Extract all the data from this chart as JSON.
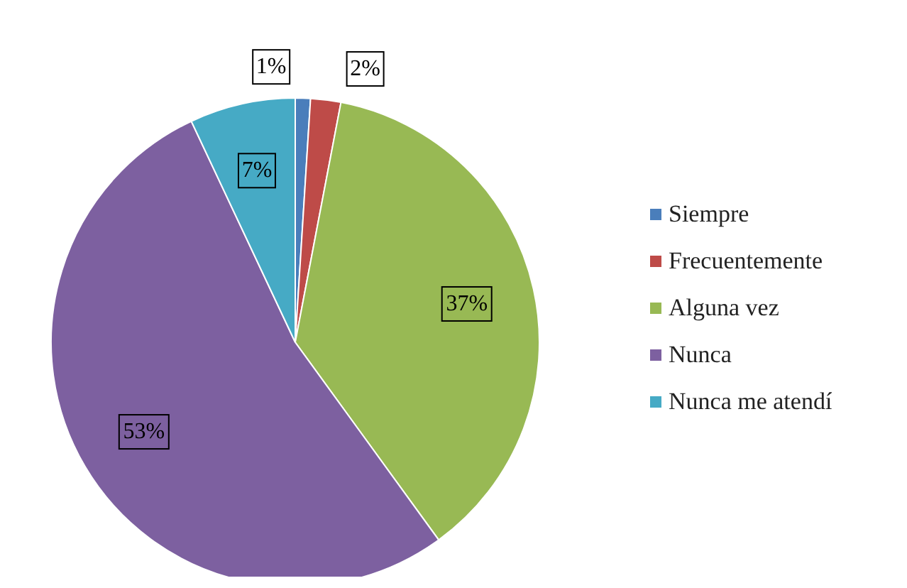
{
  "chart_data": {
    "type": "pie",
    "categories": [
      "Siempre",
      "Frecuentemente",
      "Alguna vez",
      "Nunca",
      "Nunca me atendí"
    ],
    "values": [
      1,
      2,
      37,
      53,
      7
    ],
    "value_labels": [
      "1%",
      "2%",
      "37%",
      "53%",
      "7%"
    ],
    "colors": [
      "#4a7ebb",
      "#be4b48",
      "#98b954",
      "#7d60a0",
      "#46aac5"
    ],
    "legend": "right"
  }
}
